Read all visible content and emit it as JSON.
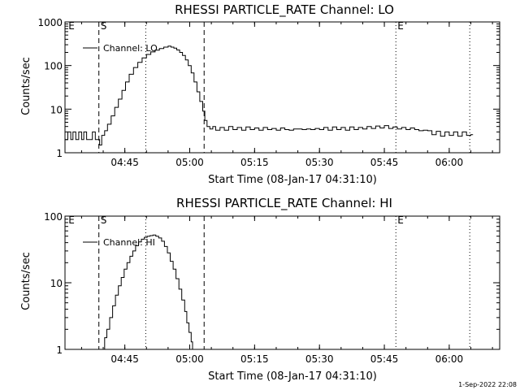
{
  "footer": {
    "timestamp": "1-Sep-2022 22:08"
  },
  "chart_data": [
    {
      "type": "line",
      "title": "RHESSI PARTICLE_RATE Channel: LO",
      "xlabel": "Start Time (08-Jan-17 04:31:10)",
      "ylabel": "Counts/sec",
      "yscale": "log",
      "xlim": [
        "04:31:10",
        "06:11:40"
      ],
      "ylim": [
        1,
        1000
      ],
      "x_ticks": [
        "04:45",
        "05:00",
        "05:15",
        "05:30",
        "05:45",
        "06:00"
      ],
      "y_ticks": [
        "1",
        "10",
        "100",
        "1000"
      ],
      "legend": {
        "label": "Channel: LO",
        "position": "top-left"
      },
      "grid": false,
      "markers": [
        {
          "label": "E",
          "time": "04:31:35",
          "style": "none"
        },
        {
          "label": "S",
          "time": "04:39:00",
          "style": "dashed"
        },
        {
          "label": "",
          "time": "04:49:50",
          "style": "dotted"
        },
        {
          "label": "",
          "time": "05:03:20",
          "style": "dashed"
        },
        {
          "label": "E",
          "time": "05:47:40",
          "style": "dotted"
        },
        {
          "label": "",
          "time": "06:04:45",
          "style": "dotted"
        }
      ],
      "series": [
        {
          "name": "Channel: LO",
          "points": [
            [
              "04:31:10",
              2
            ],
            [
              "04:31:50",
              3
            ],
            [
              "04:32:30",
              2
            ],
            [
              "04:33:00",
              3
            ],
            [
              "04:33:40",
              2
            ],
            [
              "04:34:20",
              3
            ],
            [
              "04:35:00",
              2
            ],
            [
              "04:35:30",
              3
            ],
            [
              "04:36:10",
              2
            ],
            [
              "04:36:50",
              2
            ],
            [
              "04:37:30",
              3
            ],
            [
              "04:38:10",
              2
            ],
            [
              "04:38:50",
              2
            ],
            [
              "04:39:10",
              1.5
            ],
            [
              "04:39:40",
              2.5
            ],
            [
              "04:40:20",
              3.2
            ],
            [
              "04:41:00",
              4.5
            ],
            [
              "04:41:50",
              7
            ],
            [
              "04:42:40",
              11
            ],
            [
              "04:43:30",
              17
            ],
            [
              "04:44:20",
              27
            ],
            [
              "04:45:10",
              42
            ],
            [
              "04:46:00",
              63
            ],
            [
              "04:47:00",
              90
            ],
            [
              "04:48:00",
              118
            ],
            [
              "04:49:00",
              150
            ],
            [
              "04:50:00",
              180
            ],
            [
              "04:51:00",
              205
            ],
            [
              "04:52:00",
              225
            ],
            [
              "04:53:00",
              245
            ],
            [
              "04:54:00",
              265
            ],
            [
              "04:55:00",
              280
            ],
            [
              "04:55:40",
              265
            ],
            [
              "04:56:20",
              250
            ],
            [
              "04:57:00",
              228
            ],
            [
              "04:57:40",
              200
            ],
            [
              "04:58:20",
              170
            ],
            [
              "04:59:00",
              135
            ],
            [
              "04:59:40",
              100
            ],
            [
              "05:00:20",
              68
            ],
            [
              "05:01:00",
              42
            ],
            [
              "05:01:40",
              25
            ],
            [
              "05:02:20",
              15
            ],
            [
              "05:03:00",
              9
            ],
            [
              "05:03:30",
              5.5
            ],
            [
              "05:04:00",
              4
            ],
            [
              "05:04:40",
              3.5
            ],
            [
              "05:05:20",
              4
            ],
            [
              "05:06:00",
              3.3
            ],
            [
              "05:07:00",
              3.8
            ],
            [
              "05:08:00",
              3.3
            ],
            [
              "05:09:00",
              4
            ],
            [
              "05:10:00",
              3.4
            ],
            [
              "05:11:00",
              3.8
            ],
            [
              "05:12:00",
              3.3
            ],
            [
              "05:13:00",
              3.9
            ],
            [
              "05:14:00",
              3.4
            ],
            [
              "05:15:00",
              3.7
            ],
            [
              "05:16:00",
              3.3
            ],
            [
              "05:17:00",
              3.8
            ],
            [
              "05:18:00",
              3.4
            ],
            [
              "05:19:00",
              3.6
            ],
            [
              "05:20:00",
              3.3
            ],
            [
              "05:21:00",
              3.7
            ],
            [
              "05:22:00",
              3.4
            ],
            [
              "05:23:00",
              3.3
            ],
            [
              "05:24:00",
              3.5
            ],
            [
              "05:25:00",
              3.5
            ],
            [
              "05:26:00",
              3.4
            ],
            [
              "05:27:00",
              3.5
            ],
            [
              "05:28:00",
              3.4
            ],
            [
              "05:29:00",
              3.6
            ],
            [
              "05:30:00",
              3.4
            ],
            [
              "05:31:00",
              3.8
            ],
            [
              "05:32:00",
              3.3
            ],
            [
              "05:33:00",
              3.9
            ],
            [
              "05:34:00",
              3.4
            ],
            [
              "05:35:00",
              3.8
            ],
            [
              "05:36:00",
              3.3
            ],
            [
              "05:37:00",
              3.9
            ],
            [
              "05:38:00",
              3.4
            ],
            [
              "05:39:00",
              3.8
            ],
            [
              "05:40:00",
              3.5
            ],
            [
              "05:41:00",
              4
            ],
            [
              "05:42:00",
              3.6
            ],
            [
              "05:43:00",
              4.1
            ],
            [
              "05:44:00",
              3.7
            ],
            [
              "05:45:00",
              4.2
            ],
            [
              "05:46:00",
              3.6
            ],
            [
              "05:47:00",
              3.9
            ],
            [
              "05:48:00",
              3.5
            ],
            [
              "05:49:00",
              3.8
            ],
            [
              "05:50:00",
              3.4
            ],
            [
              "05:51:00",
              3.7
            ],
            [
              "05:52:00",
              3.4
            ],
            [
              "05:53:00",
              3.2
            ],
            [
              "05:54:00",
              3.3
            ],
            [
              "05:55:00",
              3.2
            ],
            [
              "05:56:00",
              2.6
            ],
            [
              "05:57:00",
              3.1
            ],
            [
              "05:58:00",
              2.4
            ],
            [
              "05:59:00",
              3
            ],
            [
              "06:00:00",
              2.5
            ],
            [
              "06:01:00",
              3
            ],
            [
              "06:02:00",
              2.4
            ],
            [
              "06:03:00",
              3
            ],
            [
              "06:04:00",
              2.5
            ],
            [
              "06:05:00",
              2.6
            ],
            [
              "06:05:30",
              2.6
            ]
          ]
        }
      ]
    },
    {
      "type": "line",
      "title": "RHESSI PARTICLE_RATE Channel: HI",
      "xlabel": "Start Time (08-Jan-17 04:31:10)",
      "ylabel": "Counts/sec",
      "yscale": "log",
      "xlim": [
        "04:31:10",
        "06:11:40"
      ],
      "ylim": [
        1,
        100
      ],
      "x_ticks": [
        "04:45",
        "05:00",
        "05:15",
        "05:30",
        "05:45",
        "06:00"
      ],
      "y_ticks": [
        "1",
        "10",
        "100"
      ],
      "legend": {
        "label": "Channel: HI",
        "position": "top-left"
      },
      "grid": false,
      "markers": [
        {
          "label": "E",
          "time": "04:31:35",
          "style": "none"
        },
        {
          "label": "S",
          "time": "04:39:00",
          "style": "dashed"
        },
        {
          "label": "",
          "time": "04:49:50",
          "style": "dotted"
        },
        {
          "label": "",
          "time": "05:03:20",
          "style": "dashed"
        },
        {
          "label": "E",
          "time": "05:47:40",
          "style": "dotted"
        },
        {
          "label": "",
          "time": "06:04:45",
          "style": "dotted"
        }
      ],
      "series": [
        {
          "name": "Channel: HI",
          "points": [
            [
              "04:39:50",
              1
            ],
            [
              "04:40:20",
              1.5
            ],
            [
              "04:40:50",
              2
            ],
            [
              "04:41:30",
              3
            ],
            [
              "04:42:10",
              4.5
            ],
            [
              "04:42:50",
              6.5
            ],
            [
              "04:43:30",
              9
            ],
            [
              "04:44:10",
              12
            ],
            [
              "04:44:50",
              16
            ],
            [
              "04:45:30",
              20
            ],
            [
              "04:46:10",
              25
            ],
            [
              "04:46:50",
              30
            ],
            [
              "04:47:30",
              36
            ],
            [
              "04:48:10",
              41
            ],
            [
              "04:48:50",
              45
            ],
            [
              "04:49:30",
              48
            ],
            [
              "04:50:10",
              50
            ],
            [
              "04:50:50",
              51
            ],
            [
              "04:51:30",
              52
            ],
            [
              "04:52:10",
              50
            ],
            [
              "04:52:50",
              47
            ],
            [
              "04:53:30",
              42
            ],
            [
              "04:54:10",
              35
            ],
            [
              "04:54:50",
              28
            ],
            [
              "04:55:30",
              21
            ],
            [
              "04:56:10",
              16
            ],
            [
              "04:56:50",
              11.5
            ],
            [
              "04:57:30",
              8
            ],
            [
              "04:58:10",
              5.5
            ],
            [
              "04:58:50",
              3.7
            ],
            [
              "04:59:20",
              2.5
            ],
            [
              "04:59:50",
              1.8
            ],
            [
              "05:00:20",
              1.3
            ],
            [
              "05:00:40",
              1
            ]
          ]
        }
      ]
    }
  ]
}
